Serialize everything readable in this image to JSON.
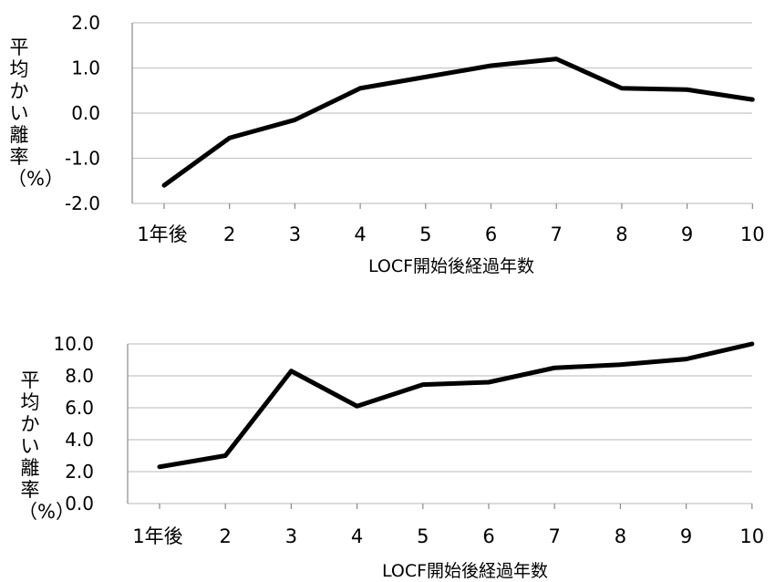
{
  "chart_data": [
    {
      "type": "line",
      "title": "",
      "xlabel": "LOCF開始後経過年数",
      "ylabel": "平均かい離率（%）",
      "categories": [
        "1年後",
        "2",
        "3",
        "4",
        "5",
        "6",
        "7",
        "8",
        "9",
        "10"
      ],
      "series": [
        {
          "values": [
            -1.6,
            -0.55,
            -0.15,
            0.55,
            0.8,
            1.05,
            1.2,
            0.55,
            0.52,
            0.3
          ]
        }
      ],
      "yticks": [
        "2.0",
        "1.0",
        "0.0",
        "-1.0",
        "-2.0"
      ],
      "ylim": [
        -2.0,
        2.0
      ],
      "grid": true,
      "line_color": "#000000"
    },
    {
      "type": "line",
      "title": "",
      "xlabel": "LOCF開始後経過年数",
      "ylabel": "平均かい離率（%）",
      "categories": [
        "1年後",
        "2",
        "3",
        "4",
        "5",
        "6",
        "7",
        "8",
        "9",
        "10"
      ],
      "series": [
        {
          "values": [
            2.3,
            3.0,
            8.3,
            6.1,
            7.45,
            7.6,
            8.5,
            8.7,
            9.05,
            10.0
          ]
        }
      ],
      "yticks": [
        "10.0",
        "8.0",
        "6.0",
        "4.0",
        "2.0",
        "0.0"
      ],
      "ylim": [
        0.0,
        10.0
      ],
      "grid": true,
      "line_color": "#000000"
    }
  ]
}
